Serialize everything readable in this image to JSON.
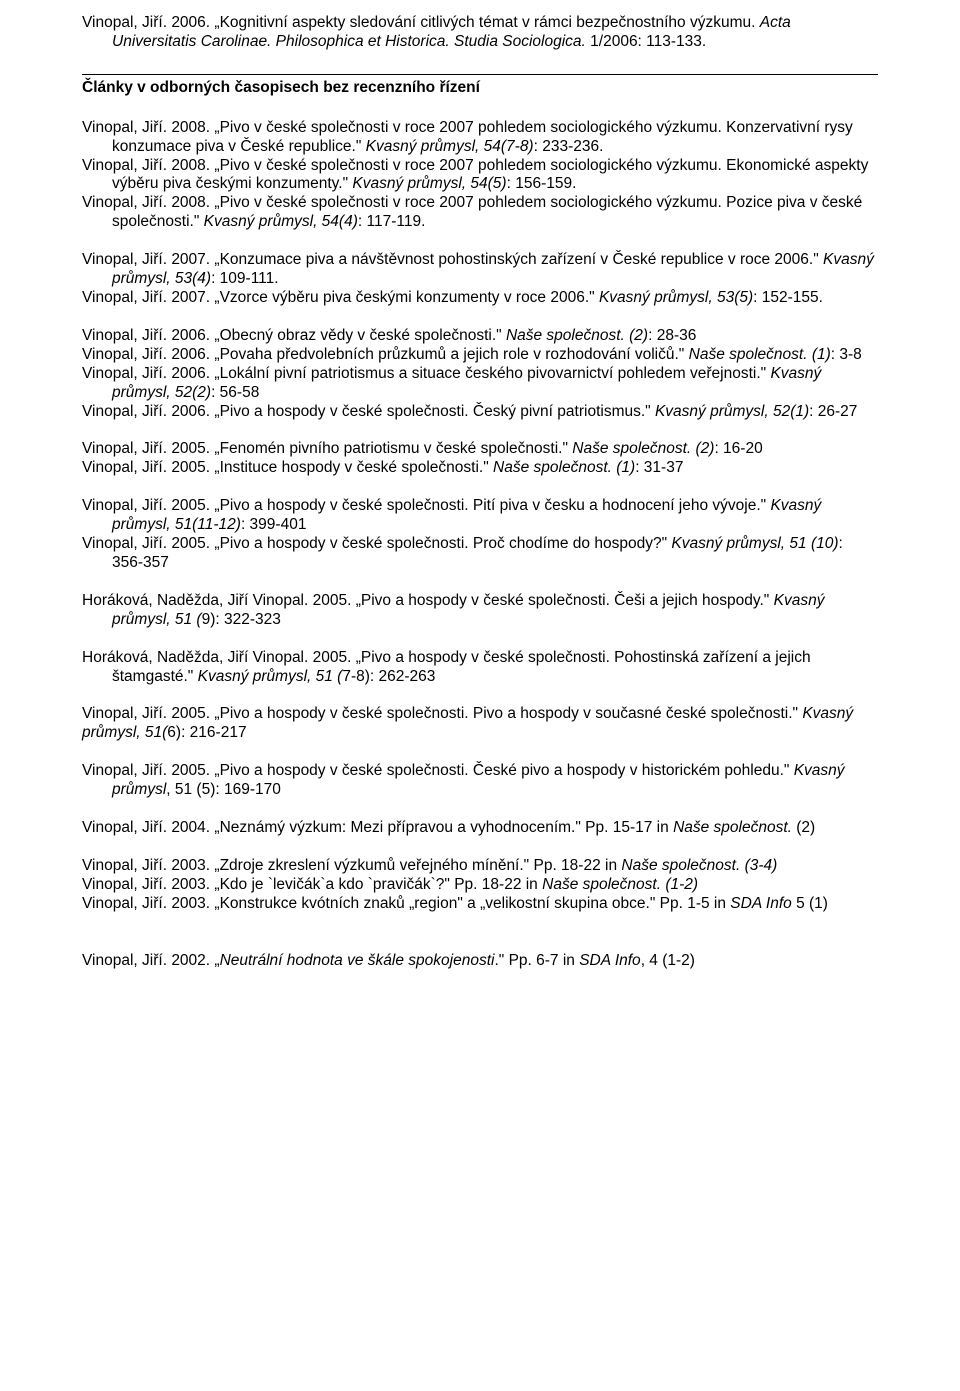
{
  "hr_color": "#000000",
  "section_heading": "Články v odborných časopisech bez recenzního řízení",
  "entries": [
    {
      "html": "Vinopal, Jiří. 2006. „Kognitivní aspekty sledování citlivých témat v rámci bezpečnostního výzkumu. <span class=\"italic\">Acta Universitatis Carolinae. Philosophica et Historica. Studia Sociologica.</span> 1/2006: 113-133."
    },
    {
      "type": "spacer"
    },
    {
      "type": "hr"
    },
    {
      "type": "heading"
    },
    {
      "type": "spacer"
    },
    {
      "html": "Vinopal, Jiří. 2008. „Pivo v české společnosti v roce 2007 pohledem sociologického výzkumu. Konzervativní rysy konzumace piva v České republice.\" <span class=\"italic\">Kvasný průmysl, 54(7-8)</span>: 233-236."
    },
    {
      "html": "Vinopal, Jiří. 2008. „Pivo v české společnosti v roce 2007 pohledem sociologického výzkumu. Ekonomické aspekty výběru piva českými konzumenty.\" <span class=\"italic\">Kvasný průmysl, 54(5)</span>: 156-159."
    },
    {
      "html": "Vinopal, Jiří. 2008. „Pivo v české společnosti v roce 2007 pohledem sociologického výzkumu. Pozice piva v české společnosti.\" <span class=\"italic\">Kvasný průmysl, 54(4)</span>: 117-119."
    },
    {
      "type": "spacer"
    },
    {
      "html": "Vinopal, Jiří. 2007. „Konzumace piva a návštěvnost pohostinských zařízení v České republice v roce 2006.\" <span class=\"italic\">Kvasný průmysl, 53(4)</span>: 109-111."
    },
    {
      "html": "Vinopal, Jiří. 2007. „Vzorce výběru piva českými konzumenty v roce 2006.\" <span class=\"italic\">Kvasný průmysl, 53(5)</span>: 152-155."
    },
    {
      "type": "spacer"
    },
    {
      "html": "Vinopal, Jiří. 2006. „Obecný obraz vědy v české společnosti.\" <span class=\"italic\">Naše společnost. (2)</span>: 28-36",
      "nohanging": true
    },
    {
      "html": "Vinopal, Jiří. 2006. „Povaha předvolebních průzkumů a jejich role v rozhodování voličů.\" <span class=\"italic\">Naše společnost. (1)</span>: 3-8",
      "nohanging": true
    },
    {
      "html": "Vinopal, Jiří. 2006. „Lokální pivní patriotismus a situace českého pivovarnictví pohledem veřejnosti.\" <span class=\"italic\">Kvasný průmysl, 52(2)</span>: 56-58"
    },
    {
      "html": "Vinopal, Jiří. 2006. „Pivo a hospody v české společnosti. Český pivní patriotismus.\" <span class=\"italic\">Kvasný průmysl, 52(1)</span>: 26-27",
      "nohanging": true
    },
    {
      "type": "spacer"
    },
    {
      "html": "Vinopal, Jiří. 2005. „Fenomén pivního patriotismu v české společnosti.\" <span class=\"italic\">Naše společnost. (2)</span>: 16-20"
    },
    {
      "html": "Vinopal, Jiří. 2005. „Instituce hospody v české společnosti.\" <span class=\"italic\">Naše společnost. (1)</span>: 31-37",
      "nohanging": true
    },
    {
      "type": "spacer"
    },
    {
      "html": "Vinopal, Jiří. 2005. „Pivo a hospody v české společnosti. Pití piva v česku a hodnocení jeho vývoje.\" <span class=\"italic\">Kvasný průmysl, 51(11-12)</span>: 399-401"
    },
    {
      "html": "Vinopal, Jiří. 2005. „Pivo a hospody v české společnosti. Proč chodíme do hospody?\" <span class=\"italic\">Kvasný průmysl, 51 (10)</span>: 356-357"
    },
    {
      "type": "spacer"
    },
    {
      "html": "Horáková, Naděžda, Jiří Vinopal. 2005. „Pivo a hospody v české společnosti. Češi a jejich hospody.\" <span class=\"italic\">Kvasný průmysl, 51 (</span>9): 322-323"
    },
    {
      "type": "spacer"
    },
    {
      "html": "Horáková, Naděžda, Jiří Vinopal. 2005. „Pivo a hospody v české společnosti. Pohostinská zařízení a jejich štamgasté.\" <span class=\"italic\">Kvasný průmysl, 51 (</span>7-8): 262-263"
    },
    {
      "type": "spacer"
    },
    {
      "html": "Vinopal, Jiří. 2005. „Pivo a hospody v české společnosti. Pivo a hospody v současné české společnosti.\" <span class=\"italic\">Kvasný průmysl, 51(</span>6): 216-217",
      "nohanging": true
    },
    {
      "type": "spacer"
    },
    {
      "html": "Vinopal, Jiří. 2005. „Pivo a hospody v české společnosti. České pivo a hospody v historickém pohledu.\" <span class=\"italic\">Kvasný průmysl</span>, 51 (5): 169-170"
    },
    {
      "type": "spacer"
    },
    {
      "html": "Vinopal, Jiří. 2004. „Neznámý výzkum: Mezi přípravou a vyhodnocením.\" Pp. 15-17 in <span class=\"italic\">Naše společnost.</span> (2)",
      "nohanging": true
    },
    {
      "type": "spacer"
    },
    {
      "html": "Vinopal, Jiří. 2003. „Zdroje zkreslení výzkumů veřejného mínění.\" Pp. 18-22 in <span class=\"italic\">Naše společnost. (3-4)</span>",
      "nohanging": true
    },
    {
      "html": "Vinopal, Jiří. 2003. „Kdo je `levičák`a kdo `pravičák`?\" Pp. 18-22 in <span class=\"italic\">Naše společnost. (1-2)</span>",
      "nohanging": true
    },
    {
      "html": "Vinopal, Jiří. 2003. „Konstrukce kvótních znaků „region\" a „velikostní skupina obce.\" Pp. 1-5 in <span class=\"italic\">SDA Info</span> 5 (1)"
    },
    {
      "type": "spacer"
    },
    {
      "type": "spacer"
    },
    {
      "html": "Vinopal, Jiří. 2002. „<span class=\"italic\">Neutrální hodnota ve škále spokojenosti</span>.\" Pp. 6-7 in <span class=\"italic\">SDA Info</span>, 4 (1-2)",
      "nohanging": true
    }
  ]
}
